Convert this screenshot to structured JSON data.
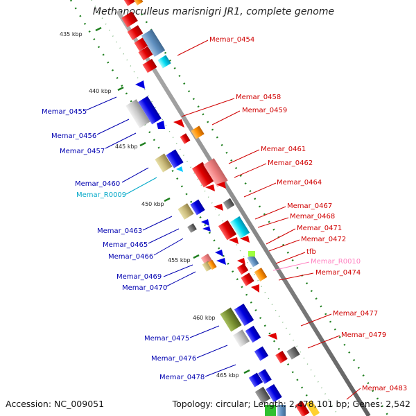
{
  "title": "Methanoculleus marisnigri JR1, complete genome",
  "accession": "Accession: NC_009051",
  "topology": "Topology: circular; Length: 2,478,101 bp; Genes: 2,542",
  "colors": {
    "plus_strand_label": "#d00000",
    "minus_strand_label": "#0000b0",
    "rna_label_cyan": "#00a8c8",
    "rna_label_pink": "#ff80c0",
    "backbone": "#8c8c8c",
    "tick": "#208020"
  },
  "kbp_markers": [
    "435 kbp",
    "440 kbp",
    "445 kbp",
    "450 kbp",
    "455 kbp",
    "460 kbp",
    "465 kbp"
  ],
  "labels_left": [
    {
      "text": "Memar_0455",
      "strand": "minus"
    },
    {
      "text": "Memar_0456",
      "strand": "minus"
    },
    {
      "text": "Memar_0457",
      "strand": "minus"
    },
    {
      "text": "Memar_0460",
      "strand": "minus"
    },
    {
      "text": "Memar_R0009",
      "strand": "rna"
    },
    {
      "text": "Memar_0463",
      "strand": "minus"
    },
    {
      "text": "Memar_0465",
      "strand": "minus"
    },
    {
      "text": "Memar_0466",
      "strand": "minus"
    },
    {
      "text": "Memar_0469",
      "strand": "minus"
    },
    {
      "text": "Memar_0470",
      "strand": "minus"
    },
    {
      "text": "Memar_0475",
      "strand": "minus"
    },
    {
      "text": "Memar_0476",
      "strand": "minus"
    },
    {
      "text": "Memar_0478",
      "strand": "minus"
    }
  ],
  "labels_right": [
    {
      "text": "Memar_0454",
      "strand": "plus"
    },
    {
      "text": "Memar_0458",
      "strand": "plus"
    },
    {
      "text": "Memar_0459",
      "strand": "plus"
    },
    {
      "text": "Memar_0461",
      "strand": "plus"
    },
    {
      "text": "Memar_0462",
      "strand": "plus"
    },
    {
      "text": "Memar_0464",
      "strand": "plus"
    },
    {
      "text": "Memar_0467",
      "strand": "plus"
    },
    {
      "text": "Memar_0468",
      "strand": "plus"
    },
    {
      "text": "Memar_0471",
      "strand": "plus"
    },
    {
      "text": "Memar_0472",
      "strand": "plus"
    },
    {
      "text": "tfb",
      "strand": "plus"
    },
    {
      "text": "Memar_R0010",
      "strand": "rna"
    },
    {
      "text": "Memar_0474",
      "strand": "plus"
    },
    {
      "text": "Memar_0477",
      "strand": "plus"
    },
    {
      "text": "Memar_0479",
      "strand": "plus"
    },
    {
      "text": "Memar_0483",
      "strand": "plus"
    }
  ]
}
